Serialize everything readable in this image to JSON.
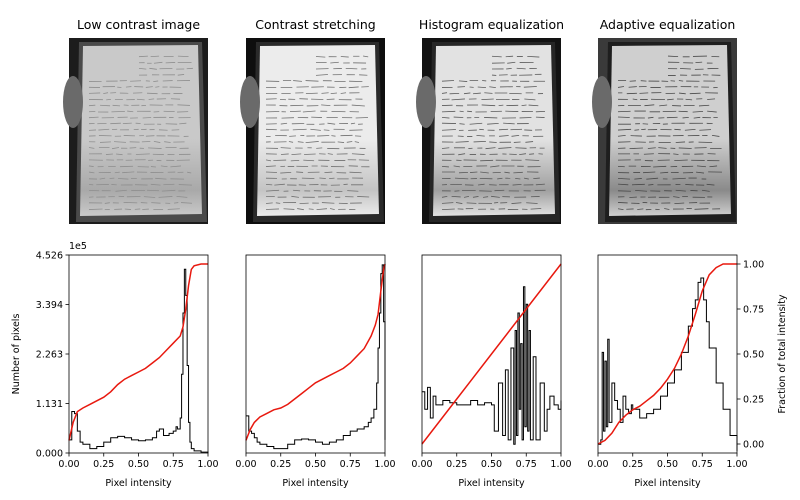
{
  "chart_data": {
    "type": "line",
    "panels": [
      {
        "title": "Low contrast image",
        "image_tone": "low"
      },
      {
        "title": "Contrast stretching",
        "image_tone": "stretch"
      },
      {
        "title": "Histogram equalization",
        "image_tone": "equalized"
      },
      {
        "title": "Adaptive equalization",
        "image_tone": "adaptive"
      }
    ],
    "xlabel": "Pixel intensity",
    "ylabel_left": "Number of pixels",
    "ylabel_right": "Fraction of total intensity",
    "y_offset_label": "1e5",
    "xlim": [
      0,
      1
    ],
    "ylim_left": [
      0,
      4.526
    ],
    "ylim_right": [
      -0.05,
      1.05
    ],
    "xticks": [
      "0.00",
      "0.25",
      "0.50",
      "0.75",
      "1.00"
    ],
    "yticks_left": [
      "0.000",
      "1.131",
      "2.263",
      "3.394",
      "4.526"
    ],
    "yticks_left_values": [
      0,
      1.131,
      2.263,
      3.394,
      4.526
    ],
    "yticks_right": [
      "0.00",
      "0.25",
      "0.50",
      "0.75",
      "1.00"
    ],
    "yticks_right_values": [
      0,
      0.25,
      0.5,
      0.75,
      1.0
    ],
    "colors": {
      "histogram": "#000000",
      "cdf": "#e8190f",
      "axes": "#000000"
    },
    "histograms": [
      {
        "name": "low",
        "x": [
          0.0,
          0.02,
          0.04,
          0.06,
          0.08,
          0.1,
          0.15,
          0.2,
          0.25,
          0.3,
          0.35,
          0.4,
          0.45,
          0.5,
          0.55,
          0.6,
          0.63,
          0.65,
          0.68,
          0.72,
          0.75,
          0.77,
          0.78,
          0.8,
          0.81,
          0.82,
          0.83,
          0.84,
          0.85,
          0.86,
          0.87,
          0.88,
          0.9,
          0.95,
          1.0
        ],
        "y": [
          0.3,
          0.95,
          0.9,
          0.5,
          0.25,
          0.2,
          0.1,
          0.15,
          0.25,
          0.35,
          0.38,
          0.35,
          0.3,
          0.28,
          0.3,
          0.35,
          0.5,
          0.55,
          0.4,
          0.45,
          0.5,
          0.6,
          0.55,
          0.8,
          1.8,
          3.2,
          4.2,
          3.6,
          2.0,
          0.7,
          0.25,
          0.1,
          0.05,
          0.02,
          0.0
        ]
      },
      {
        "name": "stretch",
        "x": [
          0.0,
          0.02,
          0.04,
          0.06,
          0.08,
          0.1,
          0.15,
          0.2,
          0.25,
          0.3,
          0.35,
          0.4,
          0.45,
          0.5,
          0.55,
          0.6,
          0.65,
          0.7,
          0.75,
          0.8,
          0.85,
          0.88,
          0.9,
          0.92,
          0.94,
          0.95,
          0.96,
          0.97,
          0.98,
          0.99,
          1.0
        ],
        "y": [
          0.85,
          0.5,
          0.45,
          0.35,
          0.25,
          0.2,
          0.15,
          0.1,
          0.1,
          0.2,
          0.3,
          0.32,
          0.3,
          0.25,
          0.2,
          0.25,
          0.3,
          0.4,
          0.5,
          0.55,
          0.6,
          0.7,
          0.8,
          1.0,
          1.6,
          2.4,
          3.2,
          4.1,
          4.3,
          3.0,
          0.3
        ]
      },
      {
        "name": "equalized",
        "x": [
          0.0,
          0.02,
          0.04,
          0.06,
          0.08,
          0.1,
          0.15,
          0.2,
          0.25,
          0.3,
          0.35,
          0.4,
          0.45,
          0.5,
          0.52,
          0.55,
          0.58,
          0.6,
          0.62,
          0.64,
          0.66,
          0.67,
          0.68,
          0.69,
          0.7,
          0.71,
          0.72,
          0.73,
          0.74,
          0.75,
          0.76,
          0.77,
          0.78,
          0.8,
          0.82,
          0.85,
          0.88,
          0.9,
          0.92,
          0.95,
          0.98,
          1.0
        ],
        "y": [
          1.4,
          1.0,
          1.5,
          0.8,
          1.3,
          1.1,
          1.2,
          1.15,
          1.1,
          1.1,
          1.2,
          1.1,
          1.15,
          1.1,
          0.5,
          1.6,
          0.4,
          1.9,
          0.3,
          2.4,
          0.2,
          2.8,
          0.4,
          3.2,
          1.0,
          2.5,
          0.3,
          3.8,
          0.6,
          3.4,
          0.5,
          2.8,
          0.3,
          2.2,
          0.3,
          1.6,
          0.5,
          1.0,
          1.3,
          1.1,
          1.0,
          1.2
        ]
      },
      {
        "name": "adaptive",
        "x": [
          0.0,
          0.02,
          0.03,
          0.04,
          0.05,
          0.06,
          0.07,
          0.08,
          0.1,
          0.12,
          0.14,
          0.16,
          0.18,
          0.2,
          0.22,
          0.24,
          0.25,
          0.3,
          0.35,
          0.4,
          0.45,
          0.5,
          0.55,
          0.6,
          0.65,
          0.68,
          0.7,
          0.72,
          0.74,
          0.76,
          0.78,
          0.8,
          0.85,
          0.9,
          0.95,
          1.0
        ],
        "y": [
          0.2,
          0.3,
          2.3,
          0.5,
          2.1,
          0.6,
          2.6,
          0.7,
          1.6,
          1.2,
          1.0,
          0.7,
          1.3,
          1.0,
          0.9,
          1.1,
          1.0,
          0.8,
          0.9,
          1.0,
          1.3,
          1.6,
          1.9,
          2.3,
          2.9,
          3.3,
          3.5,
          3.9,
          4.0,
          3.5,
          3.0,
          2.4,
          1.6,
          1.0,
          0.4,
          0.05
        ]
      }
    ],
    "cdfs": [
      {
        "name": "low",
        "x": [
          0.0,
          0.03,
          0.06,
          0.1,
          0.15,
          0.2,
          0.25,
          0.3,
          0.35,
          0.4,
          0.45,
          0.5,
          0.55,
          0.6,
          0.65,
          0.7,
          0.75,
          0.8,
          0.82,
          0.84,
          0.86,
          0.88,
          0.9,
          0.95,
          1.0
        ],
        "y": [
          0.02,
          0.12,
          0.18,
          0.2,
          0.22,
          0.24,
          0.26,
          0.29,
          0.33,
          0.36,
          0.38,
          0.4,
          0.42,
          0.45,
          0.48,
          0.52,
          0.56,
          0.6,
          0.65,
          0.75,
          0.88,
          0.97,
          0.99,
          1.0,
          1.0
        ]
      },
      {
        "name": "stretch",
        "x": [
          0.0,
          0.03,
          0.06,
          0.1,
          0.15,
          0.2,
          0.25,
          0.3,
          0.35,
          0.4,
          0.45,
          0.5,
          0.55,
          0.6,
          0.65,
          0.7,
          0.75,
          0.8,
          0.85,
          0.9,
          0.93,
          0.95,
          0.97,
          0.99,
          1.0
        ],
        "y": [
          0.02,
          0.08,
          0.12,
          0.15,
          0.17,
          0.19,
          0.2,
          0.22,
          0.25,
          0.28,
          0.31,
          0.34,
          0.36,
          0.38,
          0.4,
          0.42,
          0.45,
          0.49,
          0.53,
          0.6,
          0.66,
          0.72,
          0.85,
          0.97,
          1.0
        ]
      },
      {
        "name": "equalized",
        "x": [
          0.0,
          0.25,
          0.5,
          0.75,
          1.0
        ],
        "y": [
          0.0,
          0.25,
          0.5,
          0.75,
          1.0
        ]
      },
      {
        "name": "adaptive",
        "x": [
          0.0,
          0.05,
          0.1,
          0.15,
          0.2,
          0.25,
          0.3,
          0.35,
          0.4,
          0.45,
          0.5,
          0.55,
          0.6,
          0.65,
          0.7,
          0.75,
          0.8,
          0.85,
          0.9,
          0.95,
          1.0
        ],
        "y": [
          0.0,
          0.02,
          0.06,
          0.12,
          0.16,
          0.19,
          0.21,
          0.24,
          0.27,
          0.31,
          0.36,
          0.42,
          0.5,
          0.6,
          0.72,
          0.85,
          0.94,
          0.98,
          1.0,
          1.0,
          1.0
        ]
      }
    ]
  }
}
